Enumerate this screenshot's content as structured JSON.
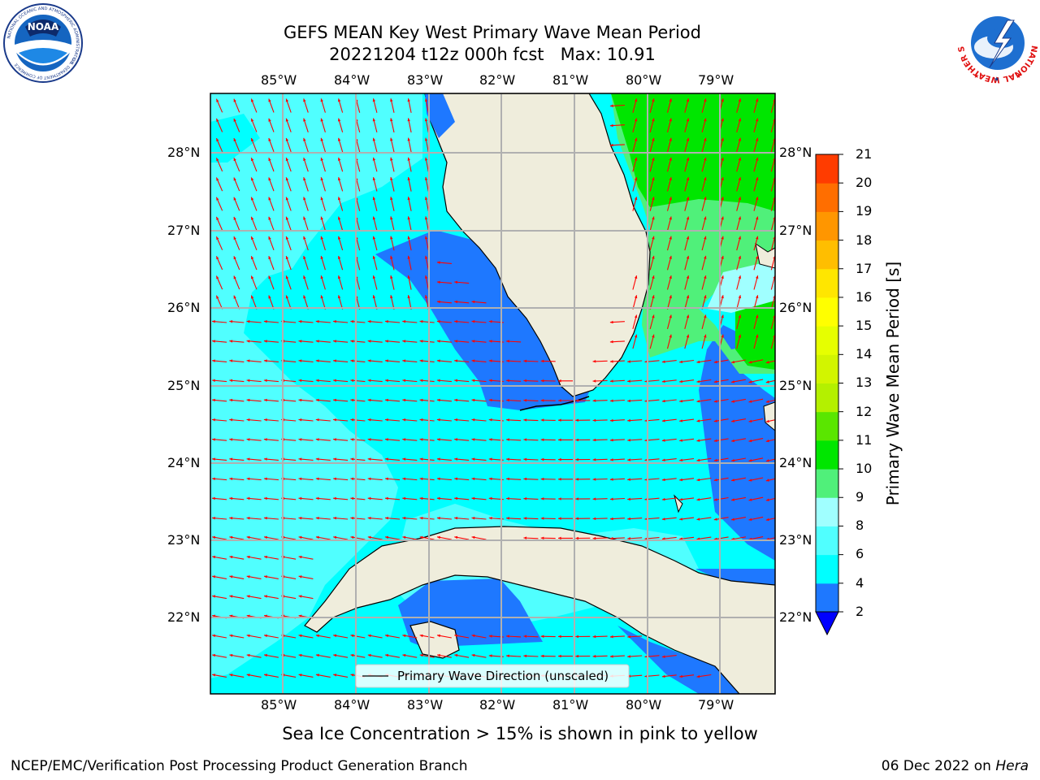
{
  "header": {
    "title_line1": "GEFS MEAN Key West Primary Wave Mean Period",
    "title_line2": "20221204 t12z 000h fcst   Max: 10.91"
  },
  "logos": {
    "noaa_center": "NOAA",
    "noaa_ring": "NATIONAL OCEANIC AND ATMOSPHERIC ADMINISTRATION",
    "noaa_ring_bottom": "U.S. DEPARTMENT OF COMMERCE",
    "nws_ring": "NATIONAL WEATHER SERVICE"
  },
  "map": {
    "lon_labels": [
      "85°W",
      "84°W",
      "83°W",
      "82°W",
      "81°W",
      "80°W",
      "79°W"
    ],
    "lat_labels": [
      "28°N",
      "27°N",
      "26°N",
      "25°N",
      "24°N",
      "23°N",
      "22°N"
    ],
    "legend_label": "Primary Wave Direction (unscaled)",
    "colors": {
      "land": "#efeddc",
      "c2_4": "#1e78ff",
      "c4_6": "#00ffff",
      "c6_8": "#50ffff",
      "c8_9": "#a0ffff",
      "c9_10": "#50f07a",
      "c10_11": "#00e600",
      "arrow": "#ff0000",
      "grid": "#b0b0b0"
    }
  },
  "colorbar": {
    "label": "Primary Wave Mean Period [s]",
    "ticks": [
      "2",
      "4",
      "6",
      "8",
      "9",
      "10",
      "11",
      "12",
      "13",
      "14",
      "15",
      "16",
      "17",
      "18",
      "19",
      "20",
      "21"
    ],
    "colors": [
      "#1e78ff",
      "#00ffff",
      "#50ffff",
      "#a0ffff",
      "#50f07a",
      "#00e600",
      "#5ae600",
      "#b4f000",
      "#d2f500",
      "#e6ff00",
      "#ffff00",
      "#ffe600",
      "#ffbe00",
      "#ff9600",
      "#ff6e00",
      "#ff3c00",
      "#ff0000"
    ],
    "extend_color": "#0000ff"
  },
  "footer": {
    "ice_note": "Sea Ice Concentration > 15% is shown in pink to yellow",
    "org": "NCEP/EMC/Verification Post Processing Product Generation Branch",
    "date": "06 Dec 2022 on ",
    "machine": "Hera"
  }
}
